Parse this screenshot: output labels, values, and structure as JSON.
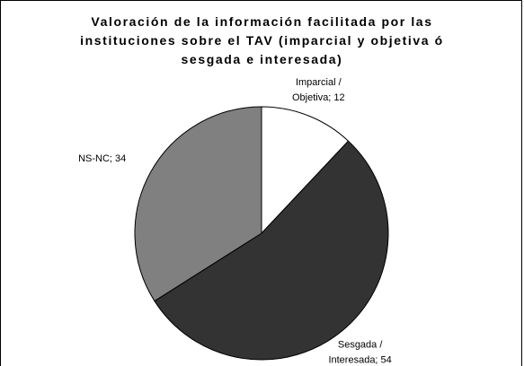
{
  "chart_data": {
    "type": "pie",
    "title": "Valoración de la información facilitada por las instituciones sobre el TAV (imparcial y objetiva ó sesgada e interesada)",
    "categories": [
      "Imparcial / Objetiva",
      "Sesgada / Interesada",
      "NS-NC"
    ],
    "values": [
      12,
      54,
      34
    ],
    "value_labels": [
      "Imparcial / Objetiva; 12",
      "Sesgada / Interesada; 54",
      "NS-NC; 34"
    ],
    "colors": [
      "#ffffff",
      "#333333",
      "#808080"
    ]
  }
}
